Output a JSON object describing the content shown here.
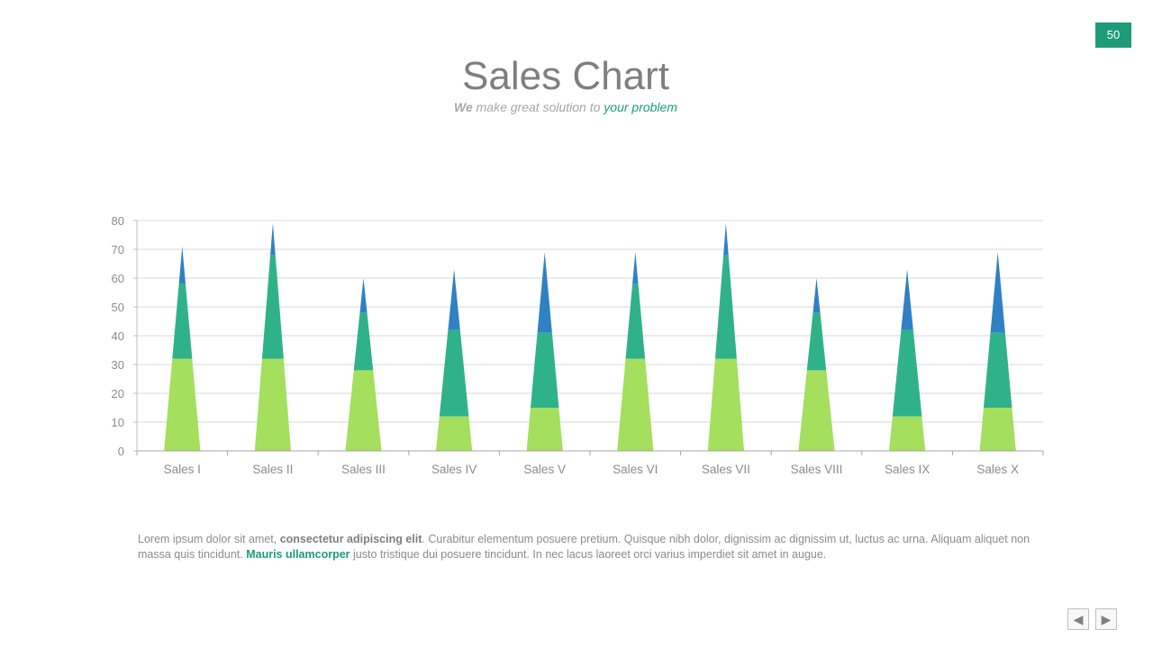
{
  "page": {
    "number": "50",
    "title": "Sales Chart",
    "subtitle_we": "We",
    "subtitle_mid": " make great solution to ",
    "subtitle_accent": "your problem"
  },
  "body": {
    "part1": "Lorem ipsum dolor sit amet, ",
    "bold1": "consectetur adipiscing elit",
    "part2": ". Curabitur elementum posuere pretium. Quisque nibh dolor, dignissim ac dignissim ut, luctus ac urna. Aliquam aliquet non massa quis tincidunt. ",
    "green1": "Mauris ullamcorper",
    "part3": " justo tristique dui posuere tincidunt. In nec lacus laoreet orci varius imperdiet sit amet in augue."
  },
  "nav": {
    "prev_icon": "◀",
    "next_icon": "▶"
  },
  "colors": {
    "accent": "#1e9b78",
    "series_bottom": "#a4df5e",
    "series_middle": "#2fb28a",
    "series_top": "#2f81c4"
  },
  "chart_data": {
    "type": "bar",
    "stacked": true,
    "bar_shape": "cone",
    "categories": [
      "Sales I",
      "Sales II",
      "Sales III",
      "Sales IV",
      "Sales V",
      "Sales VI",
      "Sales VII",
      "Sales VIII",
      "Sales IX",
      "Sales X"
    ],
    "series": [
      {
        "values": [
          32,
          32,
          28,
          12,
          15,
          32,
          32,
          28,
          12,
          15
        ],
        "color": "#a4df5e"
      },
      {
        "values": [
          26,
          36,
          20,
          30,
          26,
          26,
          36,
          20,
          30,
          26
        ],
        "color": "#2fb28a"
      },
      {
        "values": [
          13,
          11,
          12,
          21,
          28,
          11,
          11,
          12,
          21,
          28
        ],
        "color": "#2f81c4"
      }
    ],
    "ylim": [
      0,
      80
    ],
    "yticks": [
      "0",
      "10",
      "20",
      "30",
      "40",
      "50",
      "60",
      "70",
      "80"
    ],
    "grid": true
  }
}
